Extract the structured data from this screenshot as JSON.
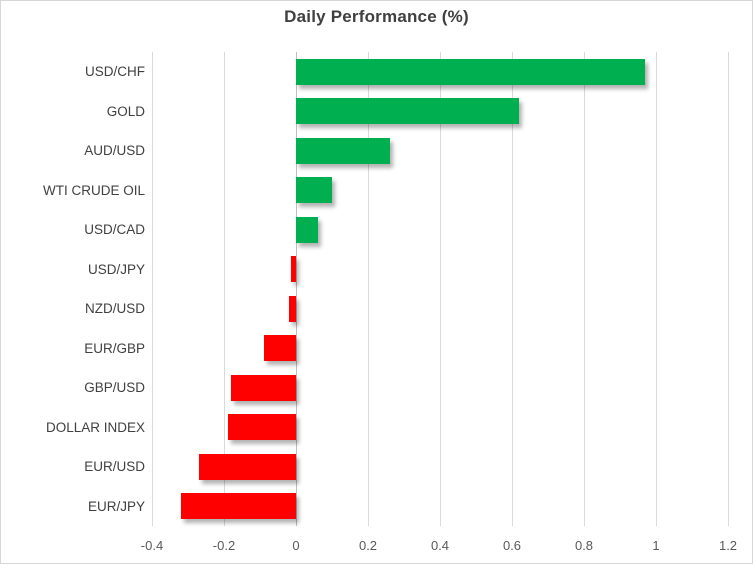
{
  "chart_data": {
    "type": "bar",
    "orientation": "horizontal",
    "title": "Daily Performance (%)",
    "xlabel": "",
    "ylabel": "",
    "categories": [
      "USD/CHF",
      "GOLD",
      "AUD/USD",
      "WTI CRUDE OIL",
      "USD/CAD",
      "USD/JPY",
      "NZD/USD",
      "EUR/GBP",
      "GBP/USD",
      "DOLLAR INDEX",
      "EUR/USD",
      "EUR/JPY"
    ],
    "values": [
      0.97,
      0.62,
      0.26,
      0.1,
      0.06,
      -0.015,
      -0.02,
      -0.09,
      -0.18,
      -0.19,
      -0.27,
      -0.32
    ],
    "xlim": [
      -0.4,
      1.2
    ],
    "x_ticks": [
      {
        "value": -0.4,
        "label": "-0.4"
      },
      {
        "value": -0.2,
        "label": "-0.2"
      },
      {
        "value": 0,
        "label": "0"
      },
      {
        "value": 0.2,
        "label": "0.2"
      },
      {
        "value": 0.4,
        "label": "0.4"
      },
      {
        "value": 0.6,
        "label": "0.6"
      },
      {
        "value": 0.8,
        "label": "0.8"
      },
      {
        "value": 1,
        "label": "1"
      },
      {
        "value": 1.2,
        "label": "1.2"
      }
    ],
    "grid": "vertical-gridlines-on",
    "legend": "none",
    "colors": {
      "positive": "#00B050",
      "negative": "#FF0000",
      "gridline": "#D9D9D9",
      "zero_axis": "#BFBFBF",
      "title_text": "#404040",
      "category_text": "#404040",
      "tick_text": "#595959",
      "frame_border": "#D6D6D6",
      "background": "#FFFFFF"
    }
  }
}
